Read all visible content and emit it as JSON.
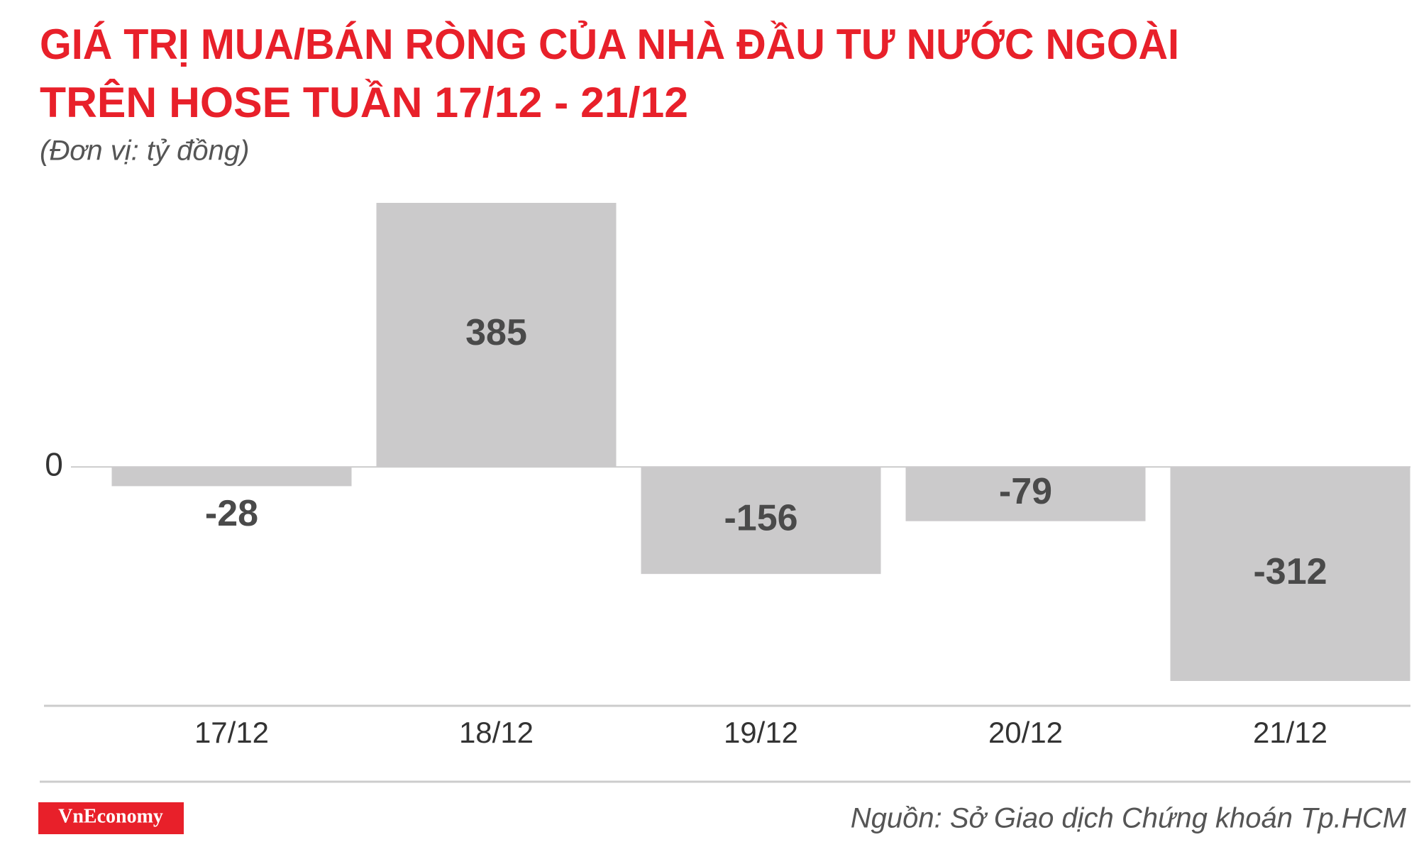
{
  "chart_data": {
    "type": "bar",
    "title": [
      "GIÁ TRỊ MUA/BÁN RÒNG CỦA NHÀ ĐẦU TƯ NƯỚC NGOÀI",
      "TRÊN HOSE TUẦN 17/12 - 21/12"
    ],
    "subtitle": "(Đơn vị: tỷ đồng)",
    "categories": [
      "17/12",
      "18/12",
      "19/12",
      "20/12",
      "21/12"
    ],
    "values": [
      -28,
      385,
      -156,
      -79,
      -312
    ],
    "color": "#cbcacb",
    "ylim": [
      -312,
      385
    ],
    "yticks": [
      0
    ],
    "source": "Nguồn: Sở Giao dịch Chứng khoán Tp.HCM",
    "brand": "VnEconomy"
  }
}
